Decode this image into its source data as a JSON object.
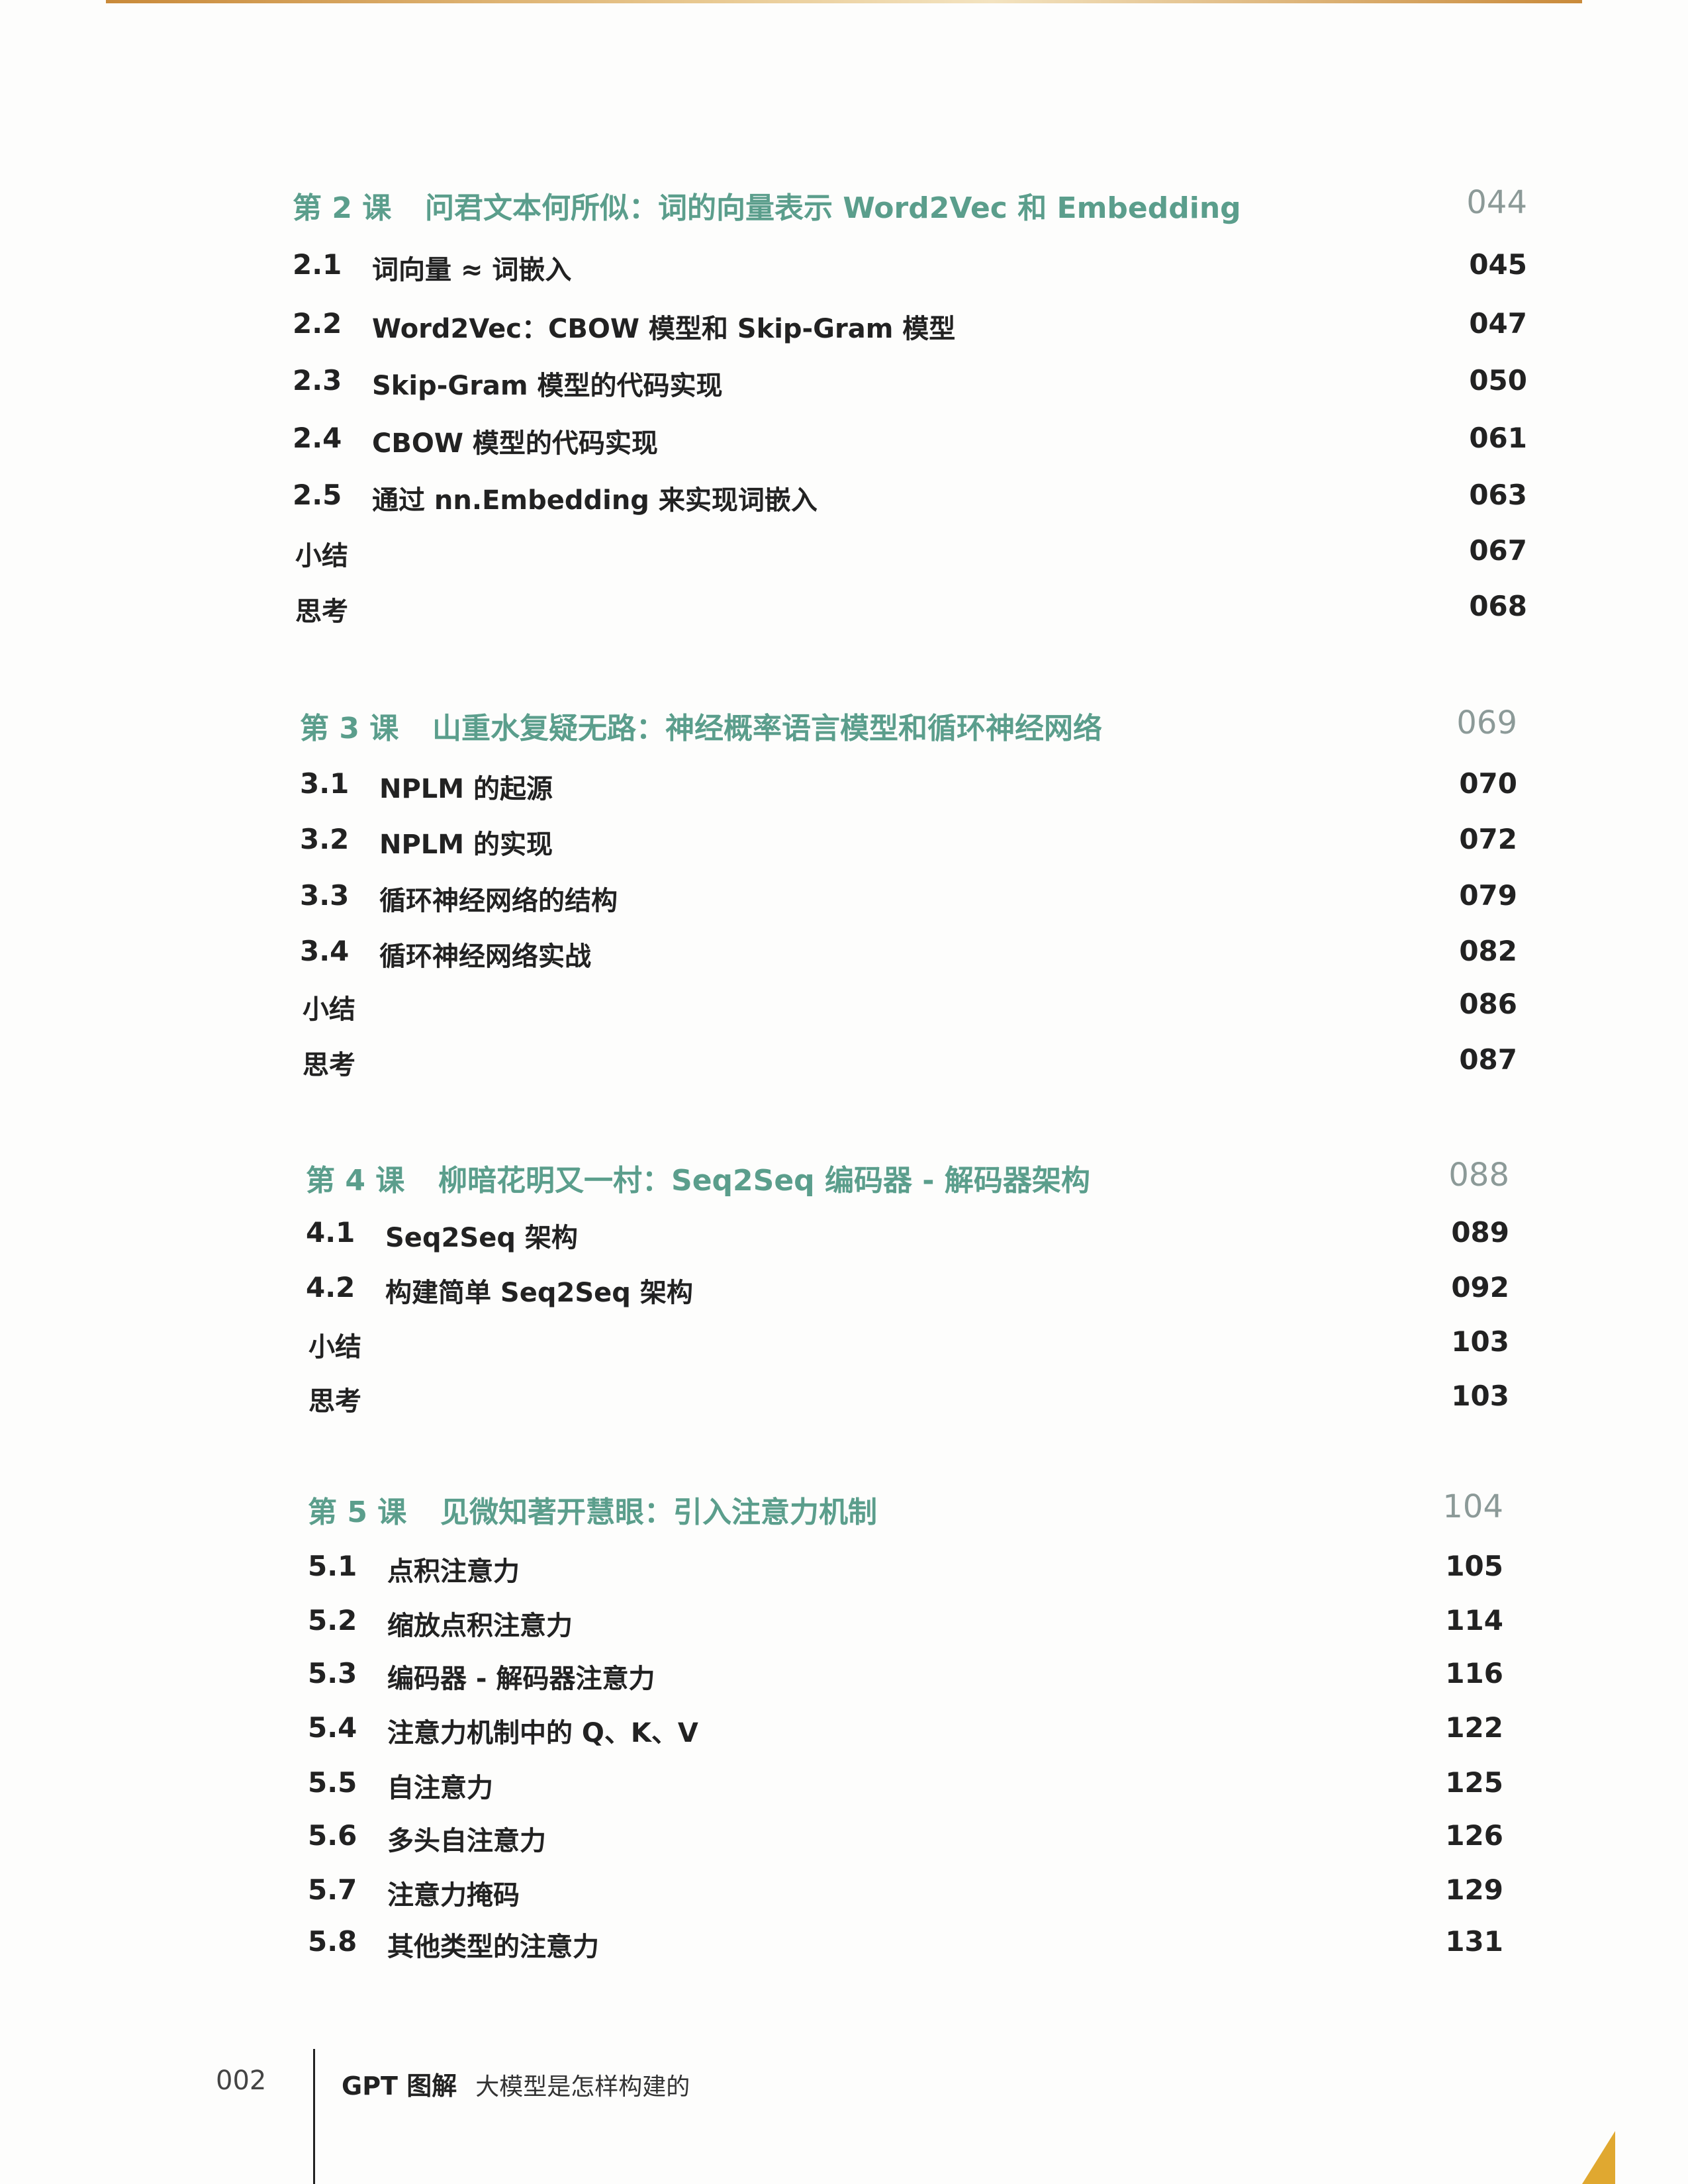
{
  "chapters": [
    {
      "label": "第 2 课",
      "title": "问君文本何所似：词的向量表示 Word2Vec 和 Embedding",
      "page": "044",
      "items": [
        {
          "num": "2.1",
          "title": "词向量 ≈ 词嵌入",
          "page": "045"
        },
        {
          "num": "2.2",
          "title": "Word2Vec：CBOW 模型和 Skip-Gram 模型",
          "page": "047"
        },
        {
          "num": "2.3",
          "title": "Skip-Gram 模型的代码实现",
          "page": "050"
        },
        {
          "num": "2.4",
          "title": "CBOW 模型的代码实现",
          "page": "061"
        },
        {
          "num": "2.5",
          "title": "通过 nn.Embedding 来实现词嵌入",
          "page": "063"
        },
        {
          "num": "",
          "title": "小结",
          "page": "067"
        },
        {
          "num": "",
          "title": "思考",
          "page": "068"
        }
      ]
    },
    {
      "label": "第 3 课",
      "title": "山重水复疑无路：神经概率语言模型和循环神经网络",
      "page": "069",
      "items": [
        {
          "num": "3.1",
          "title": "NPLM 的起源",
          "page": "070"
        },
        {
          "num": "3.2",
          "title": "NPLM 的实现",
          "page": "072"
        },
        {
          "num": "3.3",
          "title": "循环神经网络的结构",
          "page": "079"
        },
        {
          "num": "3.4",
          "title": "循环神经网络实战",
          "page": "082"
        },
        {
          "num": "",
          "title": "小结",
          "page": "086"
        },
        {
          "num": "",
          "title": "思考",
          "page": "087"
        }
      ]
    },
    {
      "label": "第 4 课",
      "title": "柳暗花明又一村：Seq2Seq 编码器 - 解码器架构",
      "page": "088",
      "items": [
        {
          "num": "4.1",
          "title": "Seq2Seq 架构",
          "page": "089"
        },
        {
          "num": "4.2",
          "title": "构建简单 Seq2Seq 架构",
          "page": "092"
        },
        {
          "num": "",
          "title": "小结",
          "page": "103"
        },
        {
          "num": "",
          "title": "思考",
          "page": "103"
        }
      ]
    },
    {
      "label": "第 5 课",
      "title": "见微知著开慧眼：引入注意力机制",
      "page": "104",
      "items": [
        {
          "num": "5.1",
          "title": "点积注意力",
          "page": "105"
        },
        {
          "num": "5.2",
          "title": "缩放点积注意力",
          "page": "114"
        },
        {
          "num": "5.3",
          "title": "编码器 - 解码器注意力",
          "page": "116"
        },
        {
          "num": "5.4",
          "title": "注意力机制中的 Q、K、V",
          "page": "122"
        },
        {
          "num": "5.5",
          "title": "自注意力",
          "page": "125"
        },
        {
          "num": "5.6",
          "title": "多头自注意力",
          "page": "126"
        },
        {
          "num": "5.7",
          "title": "注意力掩码",
          "page": "129"
        },
        {
          "num": "5.8",
          "title": "其他类型的注意力",
          "page": "131"
        }
      ]
    }
  ],
  "footer": {
    "page_number": "002",
    "book_title": "GPT 图解",
    "book_subtitle": "大模型是怎样构建的"
  },
  "colors": {
    "chapter_heading": "#5b9e8c",
    "chapter_page": "#8c9a98",
    "text": "#222222"
  }
}
